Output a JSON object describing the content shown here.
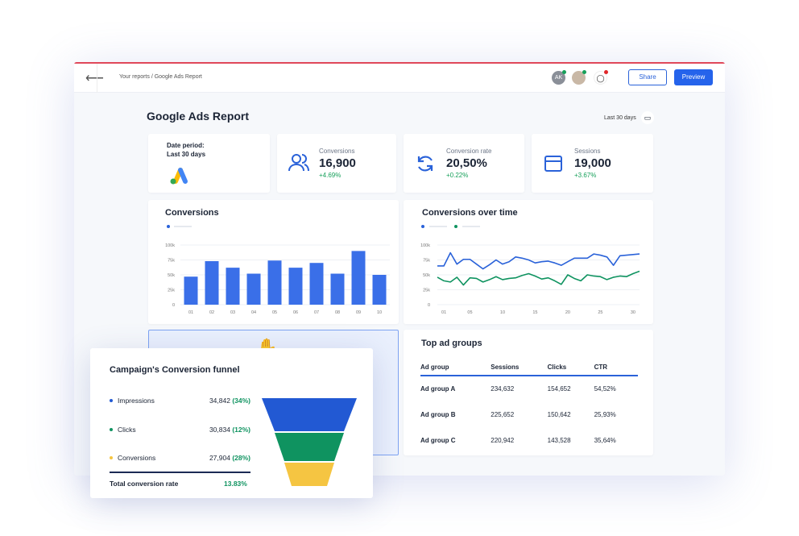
{
  "header": {
    "back_icon": "arrow-left-icon",
    "breadcrumb": "Your reports / Google Ads Report",
    "avatar_initials": "AK",
    "share": "Share",
    "preview": "Preview"
  },
  "colors": {
    "accent": "#2563eb",
    "green": "#0f9360",
    "yellow": "#f5c542",
    "red": "#e0485a"
  },
  "report": {
    "title": "Google Ads Report",
    "date_range": "Last 30 days"
  },
  "kpis": [
    {
      "label": "Date period:",
      "value": "Last 30 days",
      "icon": "google-ads-logo"
    },
    {
      "label": "Conversions",
      "value": "16,900",
      "delta": "+4.69%",
      "icon": "users-icon"
    },
    {
      "label": "Conversion rate",
      "value": "20,50%",
      "delta": "+0.22%",
      "icon": "refresh-icon"
    },
    {
      "label": "Sessions",
      "value": "19,000",
      "delta": "+3.67%",
      "icon": "browser-icon"
    }
  ],
  "chart_data": [
    {
      "type": "bar",
      "title": "Conversions",
      "categories": [
        "01",
        "02",
        "03",
        "04",
        "05",
        "06",
        "07",
        "08",
        "09",
        "10"
      ],
      "values": [
        47000,
        73000,
        62000,
        52000,
        74000,
        62000,
        70000,
        52000,
        90000,
        50000
      ],
      "ylim": [
        0,
        100000
      ],
      "yticks": [
        "0",
        "25k",
        "50k",
        "75k",
        "100k"
      ],
      "grid": true
    },
    {
      "type": "line",
      "title": "Conversions over time",
      "xlim": [
        0,
        31
      ],
      "xticks": [
        "01",
        "05",
        "10",
        "15",
        "20",
        "25",
        "30"
      ],
      "xtick_values": [
        1,
        5,
        10,
        15,
        20,
        25,
        30
      ],
      "ylim": [
        0,
        100000
      ],
      "yticks": [
        "0",
        "25k",
        "50k",
        "75k",
        "100k"
      ],
      "grid": true,
      "series": [
        {
          "color": "#2a62d9",
          "values": [
            65000,
            65000,
            87000,
            68000,
            76000,
            76000,
            68000,
            60000,
            67000,
            75000,
            68000,
            72000,
            80000,
            78000,
            75000,
            70000,
            72000,
            73000,
            70000,
            66000,
            72000,
            78000,
            78000,
            78000,
            85000,
            83000,
            80000,
            66000,
            82000,
            83000,
            84000,
            85000
          ]
        },
        {
          "color": "#0f9360",
          "values": [
            46000,
            40000,
            38000,
            46000,
            33000,
            45000,
            44000,
            38000,
            42000,
            47000,
            42000,
            44000,
            45000,
            49000,
            52000,
            48000,
            43000,
            45000,
            40000,
            34000,
            50000,
            44000,
            40000,
            50000,
            48000,
            47000,
            42000,
            46000,
            48000,
            47000,
            52000,
            56000
          ]
        }
      ]
    }
  ],
  "funnel": {
    "title": "Campaign's Conversion funnel",
    "items": [
      {
        "label": "Impressions",
        "value": "34,842",
        "pct": "(34%)",
        "color": "#2259d3"
      },
      {
        "label": "Clicks",
        "value": "30,834",
        "pct": "(12%)",
        "color": "#0f9360"
      },
      {
        "label": "Conversions",
        "value": "27,904",
        "pct": "(28%)",
        "color": "#f5c542"
      }
    ],
    "total_label": "Total conversion rate",
    "total_value": "13.83%"
  },
  "ad_groups": {
    "title": "Top ad groups",
    "columns": [
      "Ad group",
      "Sessions",
      "Clicks",
      "CTR"
    ],
    "rows": [
      [
        "Ad group A",
        "234,632",
        "154,652",
        "54,52%"
      ],
      [
        "Ad group B",
        "225,652",
        "150,642",
        "25,93%"
      ],
      [
        "Ad group C",
        "220,942",
        "143,528",
        "35,64%"
      ]
    ]
  }
}
